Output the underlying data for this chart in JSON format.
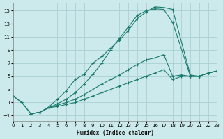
{
  "xlabel": "Humidex (Indice chaleur)",
  "bg_color": "#cce9eb",
  "grid_color": "#aad0d3",
  "line_color": "#1a7a6e",
  "xlim": [
    0,
    23
  ],
  "ylim": [
    -1.8,
    16.2
  ],
  "xticks": [
    0,
    1,
    2,
    3,
    4,
    5,
    6,
    7,
    8,
    9,
    10,
    11,
    12,
    13,
    14,
    15,
    16,
    17,
    18,
    19,
    20,
    21,
    22,
    23
  ],
  "yticks": [
    -1,
    1,
    3,
    5,
    7,
    9,
    11,
    13,
    15
  ],
  "line1_x": [
    0,
    1,
    2,
    3,
    4,
    5,
    6,
    7,
    8,
    9,
    10,
    11,
    12,
    13,
    14,
    15,
    16,
    17,
    18,
    20,
    21,
    22,
    23
  ],
  "line1_y": [
    2.0,
    1.0,
    -0.7,
    -0.5,
    0.3,
    1.5,
    2.8,
    4.5,
    5.3,
    7.0,
    8.0,
    9.3,
    10.5,
    12.0,
    13.8,
    14.8,
    15.6,
    15.5,
    15.2,
    5.2,
    5.0,
    5.5,
    5.8
  ],
  "line2_x": [
    0,
    1,
    2,
    3,
    4,
    5,
    6,
    7,
    8,
    9,
    10,
    11,
    12,
    13,
    14,
    15,
    16,
    17,
    18,
    20,
    21,
    22,
    23
  ],
  "line2_y": [
    2.0,
    1.0,
    -0.7,
    -0.5,
    0.2,
    0.8,
    1.5,
    2.5,
    3.8,
    5.3,
    7.0,
    9.0,
    10.8,
    12.5,
    14.3,
    15.0,
    15.3,
    15.2,
    13.2,
    5.0,
    5.0,
    5.5,
    5.8
  ],
  "line3_x": [
    2,
    3,
    4,
    5,
    6,
    7,
    8,
    9,
    10,
    11,
    12,
    13,
    14,
    15,
    16,
    17,
    18,
    19,
    20,
    21,
    22,
    23
  ],
  "line3_y": [
    -0.7,
    -0.5,
    0.2,
    0.6,
    1.0,
    1.5,
    2.2,
    3.0,
    3.8,
    4.5,
    5.2,
    6.0,
    6.8,
    7.5,
    7.8,
    8.3,
    5.0,
    5.2,
    5.0,
    5.0,
    5.5,
    5.8
  ],
  "line4_x": [
    2,
    3,
    4,
    5,
    6,
    7,
    8,
    9,
    10,
    11,
    12,
    13,
    14,
    15,
    16,
    17,
    18,
    19,
    20,
    21,
    22,
    23
  ],
  "line4_y": [
    -0.7,
    -0.5,
    0.2,
    0.4,
    0.7,
    1.0,
    1.5,
    2.0,
    2.5,
    3.0,
    3.5,
    4.0,
    4.5,
    5.0,
    5.5,
    6.0,
    4.5,
    5.0,
    5.0,
    5.0,
    5.5,
    5.8
  ]
}
